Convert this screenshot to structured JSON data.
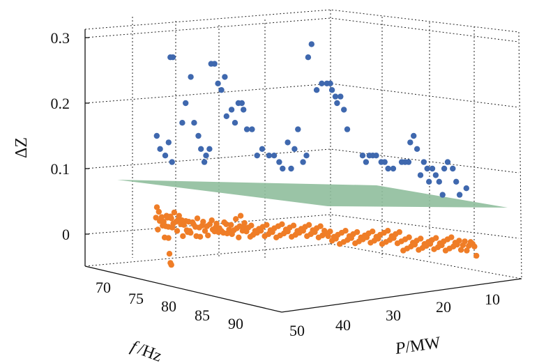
{
  "chart_data": {
    "type": "scatter",
    "title": "",
    "zlabel": "ΔZ",
    "flabel": {
      "var": "f",
      "unit": "/Hz"
    },
    "plabel": {
      "var": "P",
      "unit": "/MW"
    },
    "z_ticks": [
      "0",
      "0.1",
      "0.2",
      "0.3"
    ],
    "f_ticks": [
      "70",
      "75",
      "80",
      "85",
      "90"
    ],
    "p_ticks": [
      "50",
      "40",
      "30",
      "20",
      "10"
    ],
    "zlim": [
      -0.05,
      0.32
    ],
    "grid": true,
    "colors": {
      "blue": "#3f68ae",
      "orange": "#ef7d27",
      "plane": "#8fbe9c",
      "axis": "#111111"
    },
    "series": [
      {
        "values": [
          [
            8,
            0.15
          ],
          [
            12,
            0.13
          ],
          [
            18,
            0.12
          ],
          [
            22,
            0.14
          ],
          [
            26,
            0.11
          ],
          [
            24,
            0.27
          ],
          [
            27,
            0.27
          ],
          [
            38,
            0.17
          ],
          [
            42,
            0.2
          ],
          [
            48,
            0.24
          ],
          [
            52,
            0.17
          ],
          [
            57,
            0.15
          ],
          [
            60,
            0.13
          ],
          [
            64,
            0.11
          ],
          [
            66,
            0.12
          ],
          [
            70,
            0.13
          ],
          [
            72,
            0.26
          ],
          [
            76,
            0.26
          ],
          [
            80,
            0.23
          ],
          [
            84,
            0.22
          ],
          [
            88,
            0.24
          ],
          [
            90,
            0.18
          ],
          [
            96,
            0.19
          ],
          [
            100,
            0.17
          ],
          [
            104,
            0.2
          ],
          [
            108,
            0.2
          ],
          [
            110,
            0.19
          ],
          [
            114,
            0.16
          ],
          [
            120,
            0.16
          ],
          [
            126,
            0.12
          ],
          [
            132,
            0.13
          ],
          [
            140,
            0.12
          ],
          [
            146,
            0.12
          ],
          [
            152,
            0.11
          ],
          [
            156,
            0.1
          ],
          [
            162,
            0.14
          ],
          [
            166,
            0.1
          ],
          [
            170,
            0.13
          ],
          [
            174,
            0.16
          ],
          [
            180,
            0.11
          ],
          [
            184,
            0.12
          ],
          [
            186,
            0.27
          ],
          [
            190,
            0.29
          ],
          [
            196,
            0.22
          ],
          [
            202,
            0.23
          ],
          [
            208,
            0.23
          ],
          [
            212,
            0.23
          ],
          [
            214,
            0.22
          ],
          [
            218,
            0.21
          ],
          [
            220,
            0.2
          ],
          [
            224,
            0.21
          ],
          [
            228,
            0.19
          ],
          [
            232,
            0.16
          ],
          [
            250,
            0.12
          ],
          [
            254,
            0.11
          ],
          [
            258,
            0.12
          ],
          [
            262,
            0.12
          ],
          [
            266,
            0.12
          ],
          [
            272,
            0.11
          ],
          [
            276,
            0.11
          ],
          [
            280,
            0.1
          ],
          [
            286,
            0.1
          ],
          [
            296,
            0.11
          ],
          [
            300,
            0.11
          ],
          [
            304,
            0.11
          ],
          [
            306,
            0.14
          ],
          [
            310,
            0.15
          ],
          [
            314,
            0.13
          ],
          [
            318,
            0.09
          ],
          [
            322,
            0.11
          ],
          [
            326,
            0.1
          ],
          [
            328,
            0.08
          ],
          [
            332,
            0.1
          ],
          [
            336,
            0.09
          ],
          [
            340,
            0.08
          ],
          [
            344,
            0.06
          ],
          [
            346,
            0.1
          ],
          [
            350,
            0.11
          ],
          [
            356,
            0.1
          ],
          [
            360,
            0.08
          ],
          [
            364,
            0.06
          ],
          [
            372,
            0.07
          ]
        ]
      },
      {
        "values": [
          [
            14,
            0.02
          ],
          [
            16,
            0.04
          ],
          [
            18,
            0.01
          ],
          [
            20,
            0.03
          ],
          [
            22,
            0.02
          ],
          [
            26,
            0.03
          ],
          [
            28,
            0.01
          ],
          [
            30,
            0.02
          ],
          [
            32,
            0.0
          ],
          [
            34,
            0.01
          ],
          [
            36,
            0.03
          ],
          [
            38,
            0.02
          ],
          [
            40,
            0.01
          ],
          [
            44,
            0.03
          ],
          [
            46,
            0.02
          ],
          [
            48,
            0.01
          ],
          [
            50,
            0.02
          ],
          [
            52,
            0.03
          ],
          [
            56,
            0.02
          ],
          [
            58,
            0.01
          ],
          [
            60,
            0.02
          ],
          [
            62,
            0.03
          ],
          [
            66,
            0.01
          ],
          [
            68,
            0.02
          ],
          [
            70,
            0.0
          ],
          [
            72,
            0.01
          ],
          [
            76,
            0.02
          ],
          [
            78,
            0.01
          ],
          [
            80,
            0.0
          ],
          [
            82,
            0.02
          ],
          [
            84,
            0.01
          ],
          [
            86,
            0.0
          ],
          [
            90,
            0.02
          ],
          [
            92,
            0.01
          ],
          [
            96,
            0.01
          ],
          [
            98,
            0.0
          ],
          [
            100,
            0.02
          ],
          [
            104,
            0.01
          ],
          [
            106,
            0.0
          ],
          [
            110,
            0.01
          ],
          [
            112,
            0.02
          ],
          [
            116,
            0.01
          ],
          [
            120,
            0.01
          ],
          [
            122,
            0.0
          ],
          [
            126,
            0.01
          ],
          [
            130,
            0.02
          ],
          [
            132,
            0.01
          ],
          [
            136,
            0.0
          ],
          [
            138,
            0.01
          ],
          [
            140,
            0.02
          ],
          [
            144,
            0.0
          ],
          [
            146,
            0.01
          ],
          [
            150,
            0.01
          ],
          [
            154,
            0.0
          ],
          [
            156,
            0.02
          ],
          [
            160,
            0.01
          ],
          [
            162,
            0.0
          ],
          [
            166,
            0.01
          ],
          [
            170,
            0.01
          ],
          [
            172,
            0.0
          ],
          [
            176,
            0.01
          ],
          [
            180,
            0.02
          ],
          [
            182,
            0.01
          ],
          [
            186,
            0.0
          ],
          [
            188,
            0.01
          ],
          [
            190,
            0.03
          ],
          [
            194,
            0.0
          ],
          [
            196,
            0.01
          ],
          [
            198,
            0.02
          ],
          [
            202,
            0.0
          ],
          [
            206,
            0.01
          ],
          [
            210,
            0.0
          ],
          [
            212,
            0.01
          ],
          [
            216,
            0.0
          ],
          [
            220,
            0.01
          ],
          [
            224,
            0.0
          ],
          [
            228,
            0.01
          ],
          [
            232,
            0.0
          ],
          [
            236,
            0.01
          ],
          [
            240,
            0.0
          ],
          [
            244,
            0.01
          ],
          [
            248,
            0.0
          ],
          [
            252,
            0.01
          ],
          [
            256,
            0.0
          ],
          [
            260,
            0.01
          ],
          [
            264,
            0.0
          ],
          [
            268,
            0.01
          ],
          [
            272,
            0.0
          ],
          [
            276,
            0.01
          ],
          [
            280,
            0.0
          ],
          [
            284,
            0.01
          ],
          [
            288,
            0.0
          ],
          [
            292,
            0.01
          ],
          [
            296,
            0.0
          ],
          [
            300,
            0.01
          ],
          [
            304,
            0.0
          ],
          [
            308,
            0.01
          ],
          [
            312,
            0.0
          ],
          [
            316,
            0.01
          ],
          [
            320,
            0.0
          ],
          [
            324,
            0.01
          ],
          [
            328,
            0.0
          ],
          [
            332,
            0.01
          ],
          [
            336,
            0.0
          ],
          [
            340,
            0.01
          ],
          [
            344,
            0.0
          ],
          [
            348,
            0.01
          ],
          [
            352,
            0.0
          ],
          [
            356,
            0.01
          ],
          [
            360,
            0.0
          ],
          [
            364,
            0.0
          ],
          [
            368,
            0.0
          ],
          [
            372,
            0.0
          ],
          [
            376,
            0.0
          ],
          [
            380,
            -0.01
          ],
          [
            384,
            0.0
          ],
          [
            388,
            -0.01
          ],
          [
            392,
            0.0
          ],
          [
            396,
            -0.01
          ],
          [
            400,
            0.0
          ],
          [
            404,
            -0.01
          ],
          [
            408,
            0.0
          ],
          [
            412,
            -0.01
          ],
          [
            416,
            0.0
          ],
          [
            420,
            -0.01
          ],
          [
            424,
            0.0
          ],
          [
            428,
            -0.01
          ],
          [
            432,
            0.0
          ],
          [
            436,
            -0.01
          ],
          [
            440,
            0.0
          ],
          [
            444,
            -0.01
          ],
          [
            448,
            0.0
          ],
          [
            452,
            -0.01
          ],
          [
            456,
            0.0
          ],
          [
            460,
            -0.01
          ],
          [
            464,
            0.0
          ],
          [
            468,
            -0.01
          ],
          [
            472,
            0.0
          ],
          [
            476,
            -0.01
          ],
          [
            480,
            0.0
          ],
          [
            484,
            -0.01
          ],
          [
            488,
            0.0
          ],
          [
            492,
            -0.01
          ],
          [
            496,
            0.0
          ],
          [
            500,
            -0.01
          ],
          [
            504,
            0.0
          ],
          [
            508,
            -0.01
          ],
          [
            512,
            0.0
          ],
          [
            516,
            -0.01
          ],
          [
            520,
            0.0
          ],
          [
            524,
            -0.01
          ],
          [
            528,
            -0.02
          ],
          [
            532,
            -0.01
          ],
          [
            536,
            -0.02
          ],
          [
            540,
            -0.01
          ],
          [
            544,
            -0.02
          ],
          [
            548,
            -0.01
          ],
          [
            552,
            -0.02
          ],
          [
            556,
            -0.01
          ],
          [
            560,
            -0.02
          ],
          [
            564,
            -0.01
          ],
          [
            568,
            -0.02
          ],
          [
            572,
            -0.01
          ],
          [
            576,
            -0.02
          ],
          [
            580,
            -0.01
          ],
          [
            584,
            -0.02
          ],
          [
            588,
            -0.01
          ],
          [
            592,
            -0.02
          ],
          [
            596,
            -0.01
          ],
          [
            600,
            -0.02
          ],
          [
            604,
            -0.01
          ],
          [
            608,
            -0.02
          ],
          [
            612,
            -0.01
          ],
          [
            616,
            -0.02
          ],
          [
            620,
            -0.01
          ],
          [
            624,
            -0.02
          ],
          [
            628,
            -0.01
          ],
          [
            632,
            -0.02
          ],
          [
            636,
            -0.01
          ],
          [
            640,
            -0.02
          ],
          [
            644,
            -0.01
          ],
          [
            648,
            -0.02
          ],
          [
            652,
            -0.02
          ],
          [
            656,
            -0.01
          ],
          [
            660,
            -0.02
          ],
          [
            664,
            -0.02
          ],
          [
            668,
            -0.01
          ],
          [
            672,
            -0.02
          ],
          [
            676,
            -0.02
          ],
          [
            680,
            -0.03
          ],
          [
            40,
            -0.01
          ],
          [
            42,
            -0.03
          ],
          [
            44,
            -0.04
          ],
          [
            46,
            -0.05
          ]
        ]
      }
    ]
  }
}
